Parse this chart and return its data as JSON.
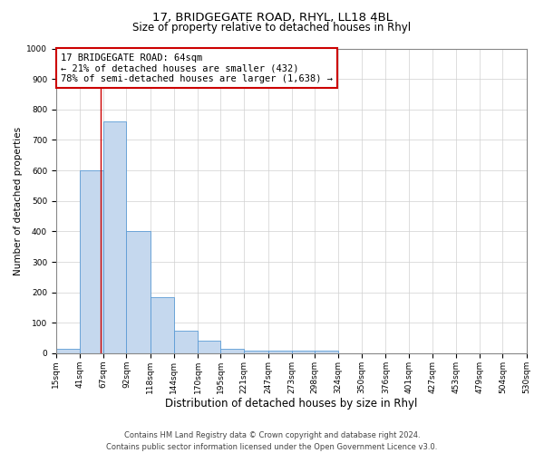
{
  "title1": "17, BRIDGEGATE ROAD, RHYL, LL18 4BL",
  "title2": "Size of property relative to detached houses in Rhyl",
  "xlabel": "Distribution of detached houses by size in Rhyl",
  "ylabel": "Number of detached properties",
  "bar_edges": [
    15,
    41,
    67,
    92,
    118,
    144,
    170,
    195,
    221,
    247,
    273,
    298,
    324,
    350,
    376,
    401,
    427,
    453,
    479,
    504,
    530
  ],
  "bar_heights": [
    15,
    600,
    760,
    400,
    185,
    75,
    40,
    15,
    10,
    10,
    10,
    10,
    0,
    0,
    0,
    0,
    0,
    0,
    0,
    0
  ],
  "bar_color": "#c5d8ee",
  "bar_edge_color": "#5b9bd5",
  "property_line_x": 64,
  "property_line_color": "#cc0000",
  "annotation_line1": "17 BRIDGEGATE ROAD: 64sqm",
  "annotation_line2": "← 21% of detached houses are smaller (432)",
  "annotation_line3": "78% of semi-detached houses are larger (1,638) →",
  "annotation_box_color": "#cc0000",
  "ylim": [
    0,
    1000
  ],
  "yticks": [
    0,
    100,
    200,
    300,
    400,
    500,
    600,
    700,
    800,
    900,
    1000
  ],
  "grid_color": "#d0d0d0",
  "bg_color": "#ffffff",
  "footnote": "Contains HM Land Registry data © Crown copyright and database right 2024.\nContains public sector information licensed under the Open Government Licence v3.0.",
  "title1_fontsize": 9.5,
  "title2_fontsize": 8.5,
  "xlabel_fontsize": 8.5,
  "ylabel_fontsize": 7.5,
  "tick_fontsize": 6.5,
  "annotation_fontsize": 7.5,
  "footnote_fontsize": 6
}
